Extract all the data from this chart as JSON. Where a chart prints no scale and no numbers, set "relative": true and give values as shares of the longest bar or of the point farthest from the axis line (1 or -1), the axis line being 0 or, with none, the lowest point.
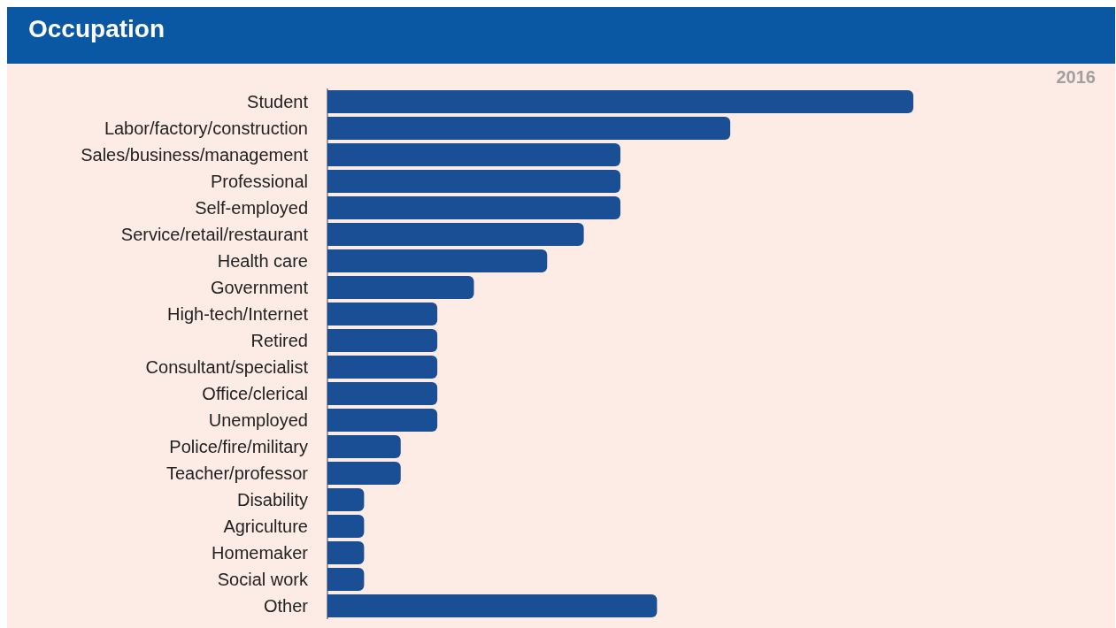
{
  "chart_data": {
    "type": "bar",
    "orientation": "horizontal",
    "relative": true,
    "title": "Occupation",
    "annotations": [
      "2016"
    ],
    "categories": [
      "Student",
      "Labor/factory/construction",
      "Sales/business/management",
      "Professional",
      "Self-employed",
      "Service/retail/restaurant",
      "Health care",
      "Government",
      "High-tech/Internet",
      "Retired",
      "Consultant/specialist",
      "Office/clerical",
      "Unemployed",
      "Police/fire/military",
      "Teacher/professor",
      "Disability",
      "Agriculture",
      "Homemaker",
      "Social work",
      "Other"
    ],
    "values": [
      1,
      0.6875,
      0.5,
      0.5,
      0.5,
      0.4375,
      0.375,
      0.25,
      0.1875,
      0.1875,
      0.1875,
      0.1875,
      0.1875,
      0.125,
      0.125,
      0.0625,
      0.0625,
      0.0625,
      0.0625,
      0.5625
    ],
    "color": "#1a4f95"
  }
}
